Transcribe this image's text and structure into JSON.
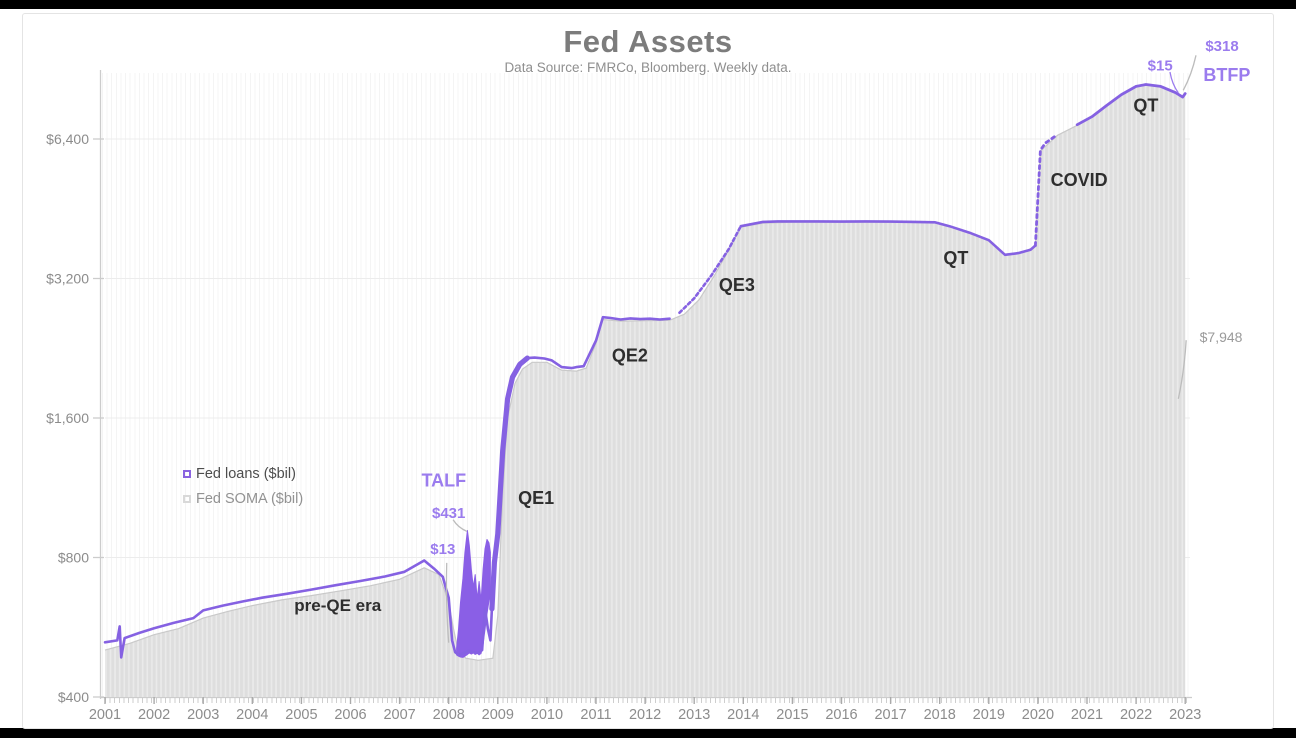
{
  "title": "Fed Assets",
  "subtitle": "Data Source: FMRCo, Bloomberg.   Weekly data.",
  "colors": {
    "line_purple": "#8561e2",
    "band_purple": "#8a5fe6",
    "label_purple": "#9b7cee",
    "label_black": "#2e2e2e",
    "label_gray": "#9a9a9a",
    "axis_text": "#8c8c8c",
    "grid": "#ececec",
    "axis_line": "#cccccc",
    "area_stripe_dark": "#dedede",
    "area_stripe_light": "#eaeaea",
    "area_top_edge": "#c9c9c9"
  },
  "legend": {
    "items": [
      {
        "label": "Fed loans ($bil)",
        "swatch_border": "#8a63e0",
        "text_color": "#4d4d4d"
      },
      {
        "label": "Fed SOMA ($bil)",
        "swatch_border": "#d9d9d9",
        "text_color": "#929292"
      }
    ]
  },
  "chart_data": {
    "type": "line",
    "title": "Fed Assets",
    "subtitle": "Data Source: FMRCo, Bloomberg.   Weekly data.",
    "y_axis": {
      "scale": "log2",
      "unit": "$bil",
      "ticks": [
        400,
        800,
        1600,
        3200,
        6400
      ],
      "range": [
        400,
        10500
      ]
    },
    "x_axis": {
      "ticks": [
        2001,
        2002,
        2003,
        2004,
        2005,
        2006,
        2007,
        2008,
        2009,
        2010,
        2011,
        2012,
        2013,
        2014,
        2015,
        2016,
        2017,
        2018,
        2019,
        2020,
        2021,
        2022,
        2023
      ]
    },
    "series": [
      {
        "name": "Fed loans ($bil)",
        "role": "line",
        "points": [
          [
            2001.0,
            525
          ],
          [
            2001.25,
            530
          ],
          [
            2001.3,
            568
          ],
          [
            2001.33,
            487
          ],
          [
            2001.4,
            536
          ],
          [
            2001.7,
            550
          ],
          [
            2002.0,
            563
          ],
          [
            2002.4,
            578
          ],
          [
            2002.8,
            592
          ],
          [
            2003.0,
            615
          ],
          [
            2003.4,
            630
          ],
          [
            2003.8,
            643
          ],
          [
            2004.2,
            655
          ],
          [
            2004.7,
            668
          ],
          [
            2005.2,
            682
          ],
          [
            2005.7,
            697
          ],
          [
            2006.2,
            712
          ],
          [
            2006.7,
            728
          ],
          [
            2007.1,
            745
          ],
          [
            2007.5,
            788
          ],
          [
            2007.7,
            757
          ],
          [
            2007.88,
            727
          ],
          [
            2007.94,
            688
          ],
          [
            2008.0,
            655
          ],
          [
            2008.07,
            530
          ],
          [
            2008.13,
            500
          ],
          [
            2008.2,
            493
          ],
          [
            2008.3,
            497
          ],
          [
            2008.4,
            503
          ],
          [
            2008.5,
            500
          ],
          [
            2008.6,
            498
          ],
          [
            2008.68,
            505
          ],
          [
            2008.74,
            620
          ],
          [
            2008.8,
            560
          ],
          [
            2008.85,
            530
          ],
          [
            2008.88,
            620
          ],
          [
            2008.93,
            780
          ],
          [
            2009.0,
            900
          ],
          [
            2009.1,
            1360
          ],
          [
            2009.2,
            1760
          ],
          [
            2009.3,
            1960
          ],
          [
            2009.45,
            2090
          ],
          [
            2009.6,
            2155
          ],
          [
            2009.75,
            2160
          ],
          [
            2009.95,
            2150
          ],
          [
            2010.1,
            2130
          ],
          [
            2010.3,
            2060
          ],
          [
            2010.5,
            2050
          ],
          [
            2010.6,
            2060
          ],
          [
            2010.75,
            2070
          ],
          [
            2011.0,
            2350
          ],
          [
            2011.14,
            2640
          ],
          [
            2011.3,
            2630
          ],
          [
            2011.5,
            2610
          ],
          [
            2011.7,
            2625
          ],
          [
            2011.9,
            2615
          ],
          [
            2012.1,
            2620
          ],
          [
            2012.3,
            2610
          ],
          [
            2012.5,
            2620
          ],
          [
            2012.7,
            2700
          ],
          [
            2013.0,
            2900
          ],
          [
            2013.35,
            3250
          ],
          [
            2013.7,
            3700
          ],
          [
            2013.95,
            4150
          ],
          [
            2014.4,
            4240
          ],
          [
            2014.7,
            4250
          ],
          [
            2015.0,
            4250
          ],
          [
            2015.5,
            4250
          ],
          [
            2016.0,
            4245
          ],
          [
            2016.5,
            4250
          ],
          [
            2017.0,
            4245
          ],
          [
            2017.5,
            4240
          ],
          [
            2017.9,
            4230
          ],
          [
            2018.2,
            4150
          ],
          [
            2018.6,
            4020
          ],
          [
            2019.0,
            3870
          ],
          [
            2019.33,
            3600
          ],
          [
            2019.6,
            3630
          ],
          [
            2019.85,
            3690
          ],
          [
            2019.95,
            3770
          ],
          [
            2020.05,
            6050
          ],
          [
            2020.15,
            6270
          ],
          [
            2020.4,
            6540
          ],
          [
            2020.8,
            6870
          ],
          [
            2021.1,
            7150
          ],
          [
            2021.4,
            7560
          ],
          [
            2021.7,
            7980
          ],
          [
            2022.0,
            8310
          ],
          [
            2022.2,
            8390
          ],
          [
            2022.5,
            8310
          ],
          [
            2022.8,
            8060
          ],
          [
            2022.95,
            7880
          ],
          [
            2023.0,
            8020
          ]
        ]
      },
      {
        "name": "Fed SOMA ($bil)",
        "role": "area",
        "points": [
          [
            2001.0,
            505
          ],
          [
            2001.5,
            522
          ],
          [
            2002.0,
            545
          ],
          [
            2002.5,
            562
          ],
          [
            2003.0,
            592
          ],
          [
            2003.5,
            612
          ],
          [
            2004.0,
            630
          ],
          [
            2004.6,
            648
          ],
          [
            2005.2,
            662
          ],
          [
            2005.8,
            678
          ],
          [
            2006.4,
            695
          ],
          [
            2007.0,
            718
          ],
          [
            2007.5,
            760
          ],
          [
            2007.8,
            735
          ],
          [
            2008.0,
            640
          ],
          [
            2008.1,
            560
          ],
          [
            2008.2,
            500
          ],
          [
            2008.35,
            485
          ],
          [
            2008.6,
            480
          ],
          [
            2008.9,
            485
          ],
          [
            2009.0,
            600
          ],
          [
            2009.1,
            1100
          ],
          [
            2009.2,
            1600
          ],
          [
            2009.35,
            1900
          ],
          [
            2009.5,
            2040
          ],
          [
            2009.7,
            2110
          ],
          [
            2010.0,
            2110
          ],
          [
            2010.3,
            2030
          ],
          [
            2010.6,
            2020
          ],
          [
            2010.8,
            2050
          ],
          [
            2011.0,
            2320
          ],
          [
            2011.14,
            2610
          ],
          [
            2011.5,
            2590
          ],
          [
            2012.0,
            2595
          ],
          [
            2012.5,
            2600
          ],
          [
            2012.8,
            2680
          ],
          [
            2013.1,
            2880
          ],
          [
            2013.4,
            3230
          ],
          [
            2013.7,
            3680
          ],
          [
            2013.95,
            4130
          ],
          [
            2014.4,
            4215
          ],
          [
            2015.0,
            4235
          ],
          [
            2016.0,
            4235
          ],
          [
            2017.0,
            4235
          ],
          [
            2017.9,
            4220
          ],
          [
            2018.5,
            4060
          ],
          [
            2019.0,
            3860
          ],
          [
            2019.33,
            3590
          ],
          [
            2019.7,
            3640
          ],
          [
            2019.95,
            3760
          ],
          [
            2020.05,
            6030
          ],
          [
            2020.4,
            6520
          ],
          [
            2020.8,
            6850
          ],
          [
            2021.1,
            7130
          ],
          [
            2021.4,
            7540
          ],
          [
            2021.7,
            7960
          ],
          [
            2022.0,
            8290
          ],
          [
            2022.2,
            8370
          ],
          [
            2022.5,
            8290
          ],
          [
            2022.8,
            8040
          ],
          [
            2022.95,
            7890
          ],
          [
            2023.0,
            7948
          ]
        ]
      }
    ],
    "crisis_band": {
      "name": "2008 weekly loan oscillation",
      "points_year_lo_hi": [
        [
          2008.16,
          493,
          510
        ],
        [
          2008.2,
          490,
          560
        ],
        [
          2008.24,
          488,
          640
        ],
        [
          2008.29,
          487,
          720
        ],
        [
          2008.33,
          490,
          820
        ],
        [
          2008.38,
          494,
          915
        ],
        [
          2008.42,
          498,
          850
        ],
        [
          2008.46,
          495,
          755
        ],
        [
          2008.5,
          498,
          690
        ],
        [
          2008.54,
          494,
          735
        ],
        [
          2008.58,
          497,
          650
        ],
        [
          2008.62,
          493,
          710
        ],
        [
          2008.66,
          497,
          645
        ],
        [
          2008.7,
          520,
          755
        ],
        [
          2008.74,
          560,
          835
        ],
        [
          2008.78,
          605,
          875
        ],
        [
          2008.82,
          645,
          860
        ],
        [
          2008.85,
          660,
          820
        ]
      ]
    },
    "annotations": [
      {
        "id": "pre-qe-era",
        "text": "pre-QE era",
        "year": 2005.74,
        "value": 632,
        "color": "black",
        "size": 17,
        "bold": true
      },
      {
        "id": "talf",
        "text": "TALF",
        "year": 2007.9,
        "value": 1176,
        "color": "purple",
        "size": 18,
        "bold": true
      },
      {
        "id": "talf-peak",
        "text": "$431",
        "year": 2008.0,
        "value": 1000,
        "color": "purple",
        "size": 15,
        "bold": true,
        "leader": {
          "x1": 2008.09,
          "y1": 965,
          "x2": 2008.37,
          "y2": 911,
          "color": "gray"
        }
      },
      {
        "id": "loans-low",
        "text": "$13",
        "year": 2007.88,
        "value": 835,
        "color": "purple",
        "size": 15,
        "bold": true,
        "leader": {
          "x1": 2007.96,
          "y1": 779,
          "x2": 2008.0,
          "y2": 524,
          "color": "gray"
        }
      },
      {
        "id": "qe1",
        "text": "QE1",
        "year": 2009.78,
        "value": 1077,
        "color": "black",
        "size": 18,
        "bold": true
      },
      {
        "id": "qe2",
        "text": "QE2",
        "year": 2011.69,
        "value": 2187,
        "color": "black",
        "size": 18,
        "bold": true
      },
      {
        "id": "qe3",
        "text": "QE3",
        "year": 2013.87,
        "value": 3100,
        "color": "black",
        "size": 18,
        "bold": true
      },
      {
        "id": "qt-1",
        "text": "QT",
        "year": 2018.33,
        "value": 3545,
        "color": "black",
        "size": 18,
        "bold": true
      },
      {
        "id": "covid",
        "text": "COVID",
        "year": 2020.84,
        "value": 5230,
        "color": "black",
        "size": 18,
        "bold": true
      },
      {
        "id": "qt-2",
        "text": "QT",
        "year": 2022.2,
        "value": 7570,
        "color": "black",
        "size": 18,
        "bold": true
      },
      {
        "id": "btfp-pre",
        "text": "$15",
        "year": 2022.49,
        "value": 9240,
        "color": "purple",
        "size": 15,
        "bold": true,
        "leader": {
          "x1": 2022.69,
          "y1": 8930,
          "x2": 2022.86,
          "y2": 8050,
          "color": "purple"
        }
      },
      {
        "id": "btfp-peak",
        "text": "$318",
        "year": 2023.75,
        "value": 10160,
        "color": "purple",
        "size": 15,
        "bold": true,
        "leader": {
          "x1": 2023.22,
          "y1": 9700,
          "x2": 2022.96,
          "y2": 8150,
          "color": "gray"
        }
      },
      {
        "id": "btfp",
        "text": "BTFP",
        "year": 2023.85,
        "value": 8800,
        "color": "purple",
        "size": 18,
        "bold": true
      },
      {
        "id": "soma-last",
        "text": "$7,948",
        "year": 2023.73,
        "value": 2390,
        "color": "gray",
        "size": 14,
        "bold": false,
        "leader": {
          "x1": 2023.02,
          "y1": 2355,
          "x2": 2022.86,
          "y2": 1760,
          "color": "gray"
        }
      }
    ]
  }
}
